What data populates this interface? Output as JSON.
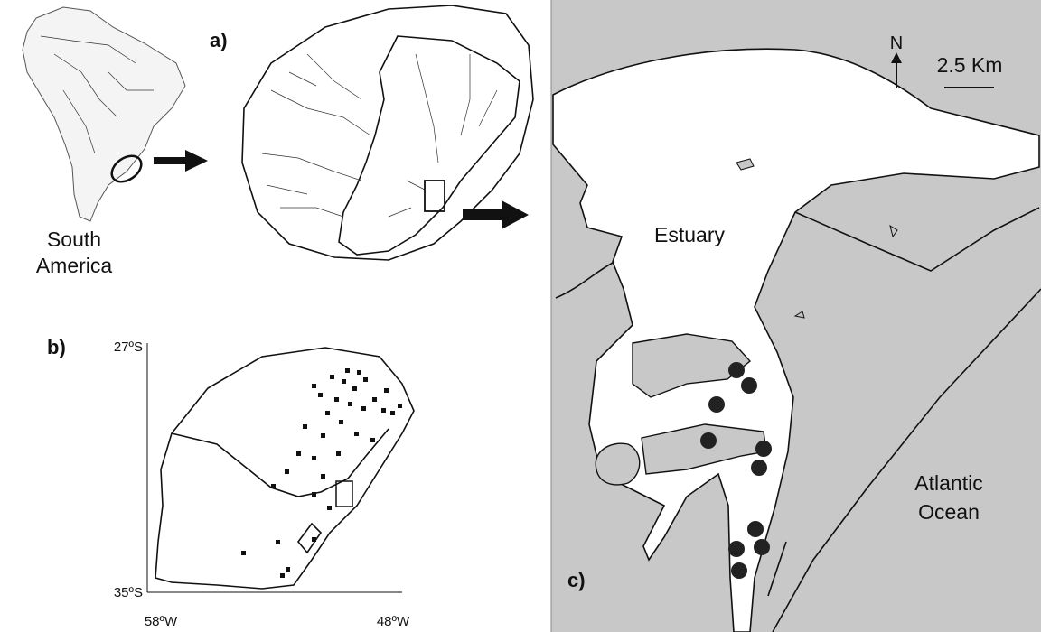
{
  "panel_a": {
    "label": "a)",
    "continent_label": [
      "South",
      "America"
    ]
  },
  "panel_b": {
    "label": "b)",
    "lat_labels": [
      "27ºS",
      "35ºS"
    ],
    "lon_labels": [
      "58ºW",
      "48ºW"
    ]
  },
  "panel_c": {
    "label": "c)",
    "north": "N",
    "scale": "2.5 Km",
    "estuary": "Estuary",
    "ocean": [
      "Atlantic",
      "Ocean"
    ]
  }
}
